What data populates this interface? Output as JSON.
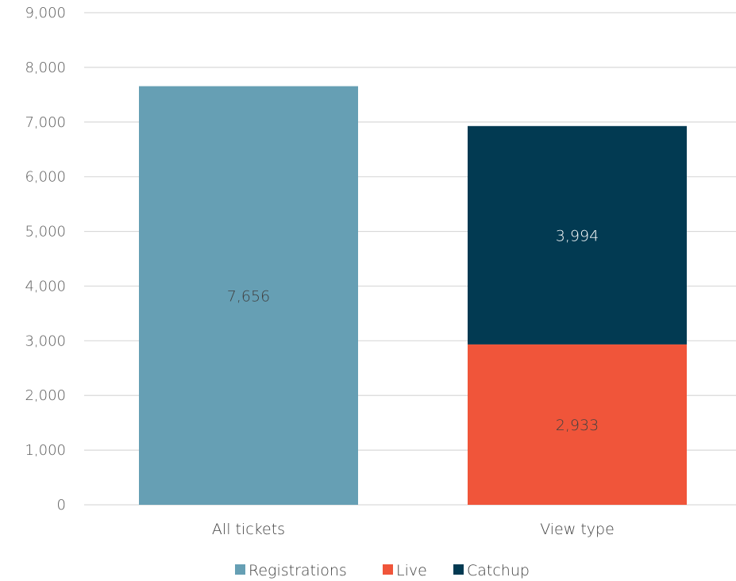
{
  "chart_data": {
    "type": "bar",
    "stacked": true,
    "categories": [
      "All tickets",
      "View type"
    ],
    "ylim": [
      0,
      9000
    ],
    "yticks": [
      0,
      1000,
      2000,
      3000,
      4000,
      5000,
      6000,
      7000,
      8000,
      9000
    ],
    "ytick_labels": [
      "0",
      "1,000",
      "2,000",
      "3,000",
      "4,000",
      "5,000",
      "6,000",
      "7,000",
      "8,000",
      "9,000"
    ],
    "grid": true,
    "legend_position": "bottom",
    "series": [
      {
        "name": "Registrations",
        "color": "#669fb4",
        "values": [
          7656,
          null
        ],
        "labels": [
          "7,656",
          ""
        ],
        "label_color": "#404040"
      },
      {
        "name": "Live",
        "color": "#f0553a",
        "values": [
          null,
          2933
        ],
        "labels": [
          "",
          "2,933"
        ],
        "label_color": "#404040"
      },
      {
        "name": "Catchup",
        "color": "#023a52",
        "values": [
          null,
          3994
        ],
        "labels": [
          "",
          "3,994"
        ],
        "label_color": "#ffffff"
      }
    ],
    "title": "",
    "xlabel": "",
    "ylabel": ""
  }
}
